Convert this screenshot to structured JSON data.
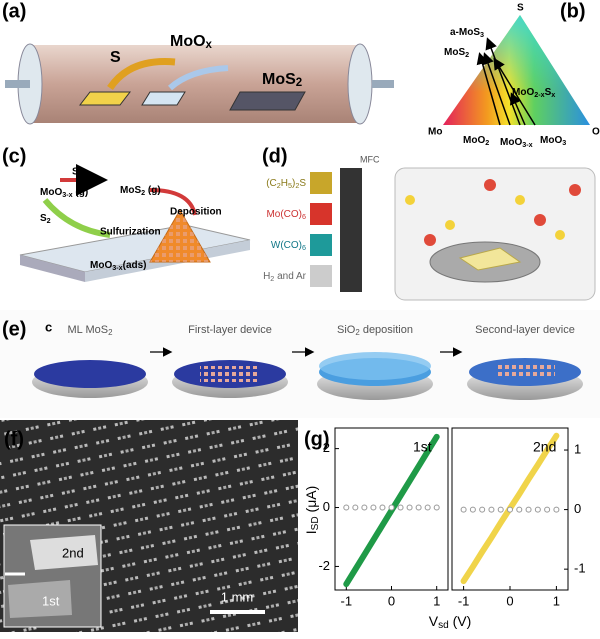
{
  "panels": {
    "a": {
      "label": "(a)",
      "source": "S",
      "oxide": [
        "MoO",
        "x"
      ],
      "product": [
        "MoS",
        "2"
      ]
    },
    "b": {
      "label": "(b)",
      "apex": "S",
      "left": "Mo",
      "right": "O",
      "points": [
        [
          "a-MoS",
          "3"
        ],
        [
          "MoS",
          "2"
        ],
        [
          "MoO",
          "2-x",
          "S",
          "x"
        ],
        [
          "MoO",
          "2"
        ],
        [
          "MoO",
          "3-x"
        ],
        [
          "MoO",
          "3"
        ]
      ]
    },
    "c": {
      "label": "(c)",
      "gas": [
        "MoO",
        "3-x",
        " (g)"
      ],
      "radical": "S*",
      "product_gas": [
        "MoS",
        "2",
        " (g)"
      ],
      "deposition": "Deposition",
      "sulfur": [
        "S",
        "2"
      ],
      "sulfurization": "Sulfurization",
      "adsorbed": [
        "MoO",
        "3-x",
        "(ads)"
      ]
    },
    "d": {
      "label": "(d)",
      "mfc": "MFC",
      "precursors": [
        [
          "(C",
          "2",
          "H",
          "5",
          ")",
          "2",
          "S"
        ],
        [
          "Mo(CO)",
          "6"
        ],
        [
          "W(CO)",
          "6"
        ],
        [
          "H",
          "2",
          " and Ar"
        ]
      ]
    },
    "e": {
      "label": "(e)",
      "sublabel": "c",
      "steps": [
        [
          "ML MoS",
          "2"
        ],
        "First-layer device",
        [
          "SiO",
          "2",
          " deposition"
        ],
        "Second-layer device"
      ]
    },
    "f": {
      "label": "(f)",
      "inset_top": "2nd",
      "inset_bottom": "1st",
      "scale": "1 mm"
    },
    "g": {
      "label": "(g)",
      "ylabel": [
        "I",
        "SD",
        " (μA)"
      ],
      "xlabel": [
        "V",
        "sd",
        " (V)"
      ]
    }
  },
  "chart_data": [
    {
      "type": "line",
      "annotation": "1st",
      "x": [
        -1,
        -0.8,
        -0.6,
        -0.4,
        -0.2,
        0,
        0.2,
        0.4,
        0.6,
        0.8,
        1
      ],
      "series": [
        {
          "color": "#1f9a47",
          "values": [
            -2.6,
            -2.1,
            -1.6,
            -1.1,
            -0.6,
            -0.1,
            0.4,
            0.9,
            1.4,
            1.9,
            2.4
          ]
        },
        {
          "color": "#999999",
          "values": [
            0,
            0,
            0,
            0,
            0,
            0,
            0,
            0,
            0,
            0,
            0
          ]
        }
      ],
      "xlim": [
        -1.25,
        1.25
      ],
      "xticks": [
        -1,
        0,
        1
      ],
      "ylim": [
        -2.8,
        2.7
      ],
      "yticks": [
        -2,
        0,
        2
      ]
    },
    {
      "type": "line",
      "annotation": "2nd",
      "x": [
        -1,
        -0.8,
        -0.6,
        -0.4,
        -0.2,
        0,
        0.2,
        0.4,
        0.6,
        0.8,
        1
      ],
      "series": [
        {
          "color": "#f0d44a",
          "values": [
            -1.2,
            -0.96,
            -0.71,
            -0.47,
            -0.22,
            0.02,
            0.26,
            0.51,
            0.75,
            1.0,
            1.24
          ]
        },
        {
          "color": "#999999",
          "values": [
            0,
            0,
            0,
            0,
            0,
            0,
            0,
            0,
            0,
            0,
            0
          ]
        }
      ],
      "xlim": [
        -1.25,
        1.25
      ],
      "xticks": [
        -1,
        0,
        1
      ],
      "ylim": [
        -1.35,
        1.37
      ],
      "yticks": [
        -1,
        0,
        1
      ]
    }
  ]
}
